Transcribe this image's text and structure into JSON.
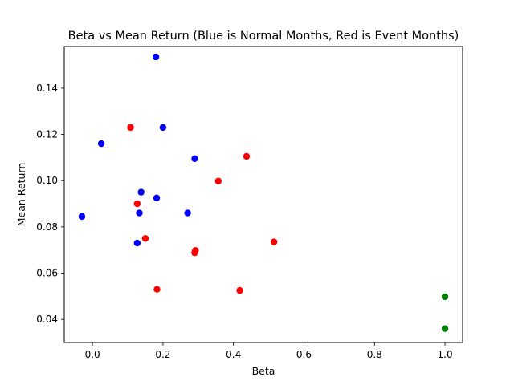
{
  "chart_data": {
    "type": "scatter",
    "title": "Beta vs Mean Return (Blue is Normal Months, Red is Event Months)",
    "xlabel": "Beta",
    "ylabel": "Mean Return",
    "xlim": [
      -0.08,
      1.05
    ],
    "ylim": [
      0.03,
      0.158
    ],
    "xticks": [
      "0.0",
      "0.2",
      "0.4",
      "0.6",
      "0.8",
      "1.0"
    ],
    "yticks": [
      "0.04",
      "0.06",
      "0.08",
      "0.10",
      "0.12",
      "0.14"
    ],
    "grid": false,
    "series": [
      {
        "color": "#0000ff",
        "points": [
          {
            "x": 0.18,
            "y": 0.1535
          },
          {
            "x": 0.025,
            "y": 0.116
          },
          {
            "x": 0.2,
            "y": 0.123
          },
          {
            "x": 0.29,
            "y": 0.1095
          },
          {
            "x": 0.138,
            "y": 0.095
          },
          {
            "x": 0.182,
            "y": 0.0925
          },
          {
            "x": 0.133,
            "y": 0.086
          },
          {
            "x": 0.27,
            "y": 0.086
          },
          {
            "x": -0.03,
            "y": 0.0845
          },
          {
            "x": 0.127,
            "y": 0.073
          }
        ]
      },
      {
        "color": "#ff0000",
        "points": [
          {
            "x": 0.108,
            "y": 0.123
          },
          {
            "x": 0.437,
            "y": 0.1105
          },
          {
            "x": 0.357,
            "y": 0.0998
          },
          {
            "x": 0.127,
            "y": 0.09
          },
          {
            "x": 0.15,
            "y": 0.075
          },
          {
            "x": 0.515,
            "y": 0.0735
          },
          {
            "x": 0.292,
            "y": 0.0698
          },
          {
            "x": 0.29,
            "y": 0.0688
          },
          {
            "x": 0.183,
            "y": 0.053
          },
          {
            "x": 0.418,
            "y": 0.0525
          }
        ]
      },
      {
        "color": "#008000",
        "points": [
          {
            "x": 1.0,
            "y": 0.0498
          },
          {
            "x": 1.0,
            "y": 0.036
          }
        ]
      }
    ]
  }
}
